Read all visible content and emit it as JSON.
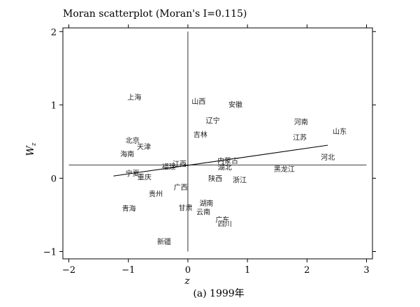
{
  "chart_data": {
    "type": "scatter",
    "title": "Moran scatterplot (Moran's I=0.115)",
    "xlabel": "z",
    "ylabel_main": "W",
    "ylabel_sub": "z",
    "caption": "(a) 1999年",
    "xlim": [
      -2.1,
      3.1
    ],
    "ylim": [
      -1.1,
      2.05
    ],
    "xticks": [
      -2,
      -1,
      0,
      1,
      2,
      3
    ],
    "yticks": [
      -1,
      0,
      1,
      2
    ],
    "xtick_labels": [
      "−2",
      "−1",
      "0",
      "1",
      "2",
      "3"
    ],
    "ytick_labels": [
      "−1",
      "0",
      "1",
      "2"
    ],
    "grid": false,
    "moran_i": 0.115,
    "regression_line": {
      "x": [
        -1.25,
        2.35
      ],
      "y": [
        0.03,
        0.45
      ]
    },
    "reference_lines": {
      "horizontal_y": 0.18,
      "vertical_x": 0
    },
    "points": [
      {
        "label": "上海",
        "x": -0.9,
        "y": 1.11
      },
      {
        "label": "山西",
        "x": 0.18,
        "y": 1.05
      },
      {
        "label": "安徽",
        "x": 0.8,
        "y": 1.01
      },
      {
        "label": "辽宁",
        "x": 0.42,
        "y": 0.79
      },
      {
        "label": "河南",
        "x": 1.9,
        "y": 0.77
      },
      {
        "label": "山东",
        "x": 2.55,
        "y": 0.64
      },
      {
        "label": "吉林",
        "x": 0.21,
        "y": 0.6
      },
      {
        "label": "江苏",
        "x": 1.88,
        "y": 0.56
      },
      {
        "label": "北京",
        "x": -0.93,
        "y": 0.52
      },
      {
        "label": "天津",
        "x": -0.74,
        "y": 0.43
      },
      {
        "label": "海南",
        "x": -1.02,
        "y": 0.33
      },
      {
        "label": "河北",
        "x": 2.35,
        "y": 0.29
      },
      {
        "label": "内蒙古",
        "x": 0.67,
        "y": 0.24
      },
      {
        "label": "江西",
        "x": -0.14,
        "y": 0.2
      },
      {
        "label": "福建",
        "x": -0.32,
        "y": 0.16
      },
      {
        "label": "湖北",
        "x": 0.62,
        "y": 0.15
      },
      {
        "label": "黑龙江",
        "x": 1.62,
        "y": 0.13
      },
      {
        "label": "宁夏",
        "x": -0.93,
        "y": 0.07
      },
      {
        "label": "重庆",
        "x": -0.73,
        "y": 0.02
      },
      {
        "label": "陕西",
        "x": 0.46,
        "y": 0.0
      },
      {
        "label": "浙江",
        "x": 0.87,
        "y": -0.02
      },
      {
        "label": "广西",
        "x": -0.12,
        "y": -0.12
      },
      {
        "label": "贵州",
        "x": -0.54,
        "y": -0.21
      },
      {
        "label": "湖南",
        "x": 0.31,
        "y": -0.34
      },
      {
        "label": "青海",
        "x": -0.99,
        "y": -0.41
      },
      {
        "label": "甘肃",
        "x": -0.04,
        "y": -0.4
      },
      {
        "label": "云南",
        "x": 0.26,
        "y": -0.46
      },
      {
        "label": "广东",
        "x": 0.58,
        "y": -0.56
      },
      {
        "label": "四川",
        "x": 0.62,
        "y": -0.62
      },
      {
        "label": "新疆",
        "x": -0.4,
        "y": -0.86
      }
    ]
  }
}
